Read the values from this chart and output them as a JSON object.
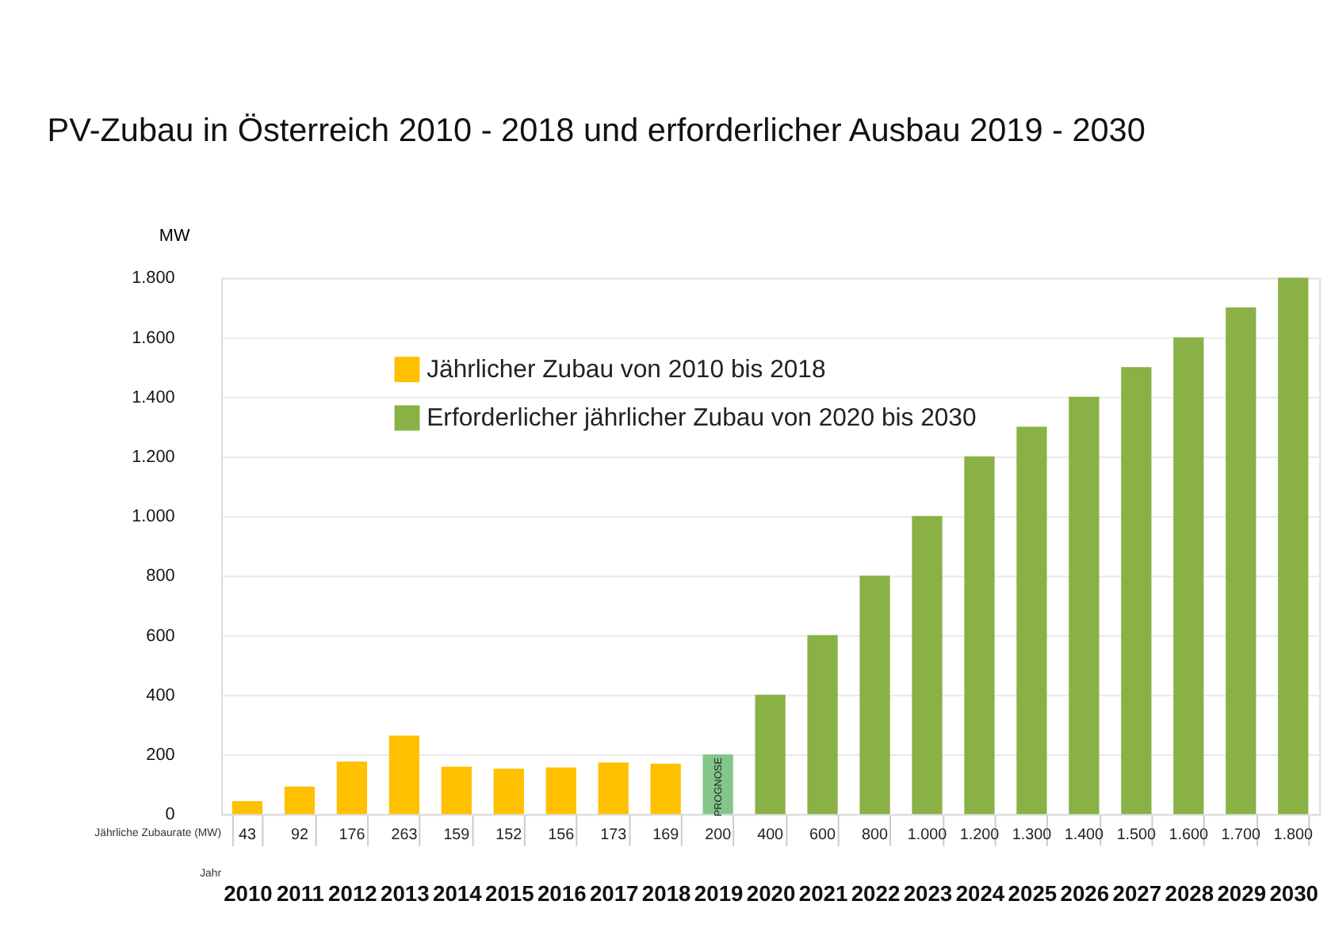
{
  "chart_data": {
    "type": "bar",
    "title": "PV-Zubau in Österreich 2010 - 2018 und erforderlicher Ausbau 2019 - 2030",
    "ylabel": "MW",
    "categories": [
      "2010",
      "2011",
      "2012",
      "2013",
      "2014",
      "2015",
      "2016",
      "2017",
      "2018",
      "2019",
      "2020",
      "2021",
      "2022",
      "2023",
      "2024",
      "2025",
      "2026",
      "2027",
      "2028",
      "2029",
      "2030"
    ],
    "series": [
      {
        "name": "Jährlicher Zubau von 2010 bis 2018",
        "color": "#ffc000",
        "values": [
          43,
          92,
          176,
          263,
          159,
          152,
          156,
          173,
          169,
          null,
          null,
          null,
          null,
          null,
          null,
          null,
          null,
          null,
          null,
          null,
          null
        ],
        "value_labels": [
          "43",
          "92",
          "176",
          "263",
          "159",
          "152",
          "156",
          "173",
          "169",
          null,
          null,
          null,
          null,
          null,
          null,
          null,
          null,
          null,
          null,
          null,
          null
        ]
      },
      {
        "color": "#84c68a",
        "values": [
          null,
          null,
          null,
          null,
          null,
          null,
          null,
          null,
          null,
          200,
          null,
          null,
          null,
          null,
          null,
          null,
          null,
          null,
          null,
          null,
          null
        ],
        "value_labels": [
          null,
          null,
          null,
          null,
          null,
          null,
          null,
          null,
          null,
          "200",
          null,
          null,
          null,
          null,
          null,
          null,
          null,
          null,
          null,
          null,
          null
        ]
      },
      {
        "name": "Erforderlicher jährlicher Zubau von 2020 bis 2030",
        "color": "#8ab145",
        "values": [
          null,
          null,
          null,
          null,
          null,
          null,
          null,
          null,
          null,
          null,
          400,
          600,
          800,
          1000,
          1200,
          1300,
          1400,
          1500,
          1600,
          1700,
          1800
        ],
        "value_labels": [
          null,
          null,
          null,
          null,
          null,
          null,
          null,
          null,
          null,
          null,
          "400",
          "600",
          "800",
          "1.000",
          "1.200",
          "1.300",
          "1.400",
          "1.500",
          "1.600",
          "1.700",
          "1.800"
        ]
      }
    ],
    "ylim": [
      0,
      1800
    ],
    "yticks": [
      0,
      200,
      400,
      600,
      800,
      {
        "value": 1000,
        "label": "1.000"
      },
      {
        "value": 1200,
        "label": "1.200"
      },
      {
        "value": 1400,
        "label": "1.400"
      },
      {
        "value": 1600,
        "label": "1.600"
      },
      {
        "value": 1800,
        "label": "1.800"
      }
    ],
    "grid": "y",
    "legend": "top left",
    "annotations": [
      "PROGNOSE",
      "Jährliche Zubaurate (MW)",
      "Jahr"
    ]
  }
}
